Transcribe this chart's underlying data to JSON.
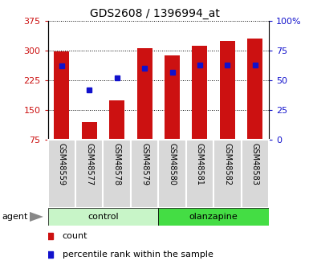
{
  "title": "GDS2608 / 1396994_at",
  "samples": [
    "GSM48559",
    "GSM48577",
    "GSM48578",
    "GSM48579",
    "GSM48580",
    "GSM48581",
    "GSM48582",
    "GSM48583"
  ],
  "counts": [
    297,
    120,
    175,
    305,
    288,
    312,
    325,
    330
  ],
  "percentiles": [
    62,
    42,
    52,
    60,
    57,
    63,
    63,
    63
  ],
  "ylim_left": [
    75,
    375
  ],
  "ylim_right": [
    0,
    100
  ],
  "left_ticks": [
    75,
    150,
    225,
    300,
    375
  ],
  "right_ticks": [
    0,
    25,
    50,
    75,
    100
  ],
  "bar_color": "#cc1111",
  "dot_color": "#1111cc",
  "control_color": "#c8f5c8",
  "olanzapine_color": "#44dd44",
  "bar_width": 0.55,
  "label_bg_color": "#d8d8d8",
  "plot_bg_color": "#ffffff"
}
